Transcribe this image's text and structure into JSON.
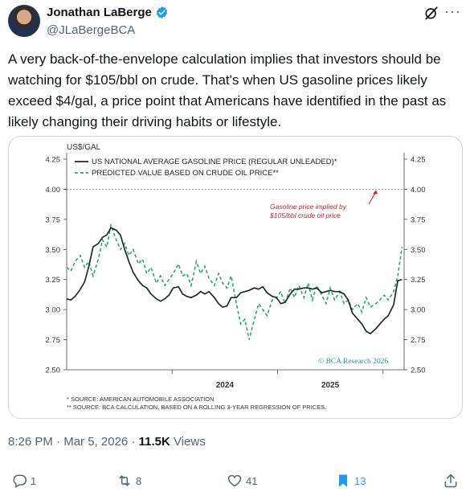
{
  "author": {
    "name": "Jonathan LaBerge",
    "handle": "@JLaBergeBCA",
    "verified": true
  },
  "icons": [
    "verified-icon",
    "grok-icon",
    "more-icon",
    "reply-icon",
    "retweet-icon",
    "like-icon",
    "bookmark-icon",
    "share-icon"
  ],
  "tweet": {
    "text": "A very back-of-the-envelope calculation implies that investors should be watching for $105/bbl on crude. That's when US gasoline prices likely exceed $4/gal, a price point that Americans have identified in the past as likely changing their driving habits or lifestyle."
  },
  "meta": {
    "time": "8:26 PM",
    "sep1": " · ",
    "date": "Mar 5, 2026",
    "sep2": " · ",
    "views_count": "11.5K",
    "views_label": " Views"
  },
  "actions": {
    "replies": "1",
    "reposts": "8",
    "likes": "41",
    "bookmarks": "13"
  },
  "colors": {
    "accent": "#1d9bf0",
    "chart_green": "#2aa27a",
    "chart_dark": "#1f2a2a",
    "chart_red": "#d32027",
    "chart_teal": "#2a9d8f"
  },
  "chart_data": {
    "type": "line",
    "ylabel": "US$/GAL",
    "ylim": [
      2.5,
      4.25
    ],
    "yticks": [
      "4.25",
      "4.00",
      "3.75",
      "3.50",
      "3.25",
      "3.00",
      "2.75",
      "2.50"
    ],
    "xticks": [
      "2024",
      "2025"
    ],
    "reference_line": 4.0,
    "legend_placement": "top-left",
    "annotation": "Gasoline price implied by $105/bbl crude oil price",
    "copyright": "© BCA Research 2026",
    "footnotes": [
      "* SOURCE: AMERICAN AUTOMOBILE ASSOCIATION",
      "** SOURCE: BCA CALCULATION, BASED ON A ROLLING 3-YEAR REGRESSION OF PRICES."
    ],
    "series": [
      {
        "name": "US NATIONAL AVERAGE GASOLINE PRICE (REGULAR UNLEADED)*",
        "style": "solid",
        "x": [
          2023.0,
          2023.04,
          2023.08,
          2023.13,
          2023.17,
          2023.21,
          2023.25,
          2023.3,
          2023.34,
          2023.38,
          2023.42,
          2023.47,
          2023.51,
          2023.55,
          2023.59,
          2023.63,
          2023.68,
          2023.72,
          2023.76,
          2023.8,
          2023.85,
          2023.89,
          2023.93,
          2023.97,
          2024.01,
          2024.06,
          2024.1,
          2024.14,
          2024.18,
          2024.23,
          2024.27,
          2024.31,
          2024.35,
          2024.4,
          2024.44,
          2024.48,
          2024.52,
          2024.56,
          2024.61,
          2024.65,
          2024.69,
          2024.73,
          2024.78,
          2024.82,
          2024.86,
          2024.9,
          2024.95,
          2024.99,
          2025.03,
          2025.07,
          2025.12,
          2025.16,
          2025.2,
          2025.25,
          2025.29,
          2025.33,
          2025.37,
          2025.42,
          2025.46,
          2025.5,
          2025.54,
          2025.59,
          2025.63,
          2025.67,
          2025.71,
          2025.76,
          2025.8,
          2025.84,
          2025.88,
          2025.93,
          2025.97,
          2026.01,
          2026.05,
          2026.1,
          2026.14,
          2026.18
        ],
        "values": [
          3.09,
          3.08,
          3.11,
          3.17,
          3.23,
          3.36,
          3.52,
          3.55,
          3.6,
          3.62,
          3.68,
          3.66,
          3.62,
          3.5,
          3.4,
          3.31,
          3.24,
          3.2,
          3.18,
          3.13,
          3.09,
          3.07,
          3.09,
          3.12,
          3.18,
          3.19,
          3.13,
          3.11,
          3.1,
          3.12,
          3.15,
          3.13,
          3.15,
          3.1,
          3.05,
          3.02,
          3.03,
          3.1,
          3.1,
          3.14,
          3.15,
          3.16,
          3.18,
          3.17,
          3.19,
          3.14,
          3.11,
          3.1,
          3.05,
          3.06,
          3.13,
          3.17,
          3.17,
          3.18,
          3.18,
          3.17,
          3.18,
          3.14,
          3.15,
          3.16,
          3.15,
          3.15,
          3.13,
          3.08,
          2.97,
          2.92,
          2.88,
          2.82,
          2.8,
          2.84,
          2.88,
          2.92,
          2.95,
          3.04,
          3.24,
          3.25
        ]
      },
      {
        "name": "PREDICTED VALUE BASED ON CRUDE OIL PRICE**",
        "style": "dashed",
        "x": [
          2023.0,
          2023.04,
          2023.08,
          2023.13,
          2023.17,
          2023.21,
          2023.25,
          2023.3,
          2023.34,
          2023.38,
          2023.42,
          2023.47,
          2023.51,
          2023.55,
          2023.59,
          2023.63,
          2023.68,
          2023.72,
          2023.76,
          2023.8,
          2023.85,
          2023.89,
          2023.93,
          2023.97,
          2024.01,
          2024.06,
          2024.1,
          2024.14,
          2024.18,
          2024.23,
          2024.27,
          2024.31,
          2024.35,
          2024.4,
          2024.44,
          2024.48,
          2024.52,
          2024.56,
          2024.61,
          2024.65,
          2024.69,
          2024.73,
          2024.78,
          2024.82,
          2024.86,
          2024.9,
          2024.95,
          2024.99,
          2025.03,
          2025.07,
          2025.12,
          2025.16,
          2025.2,
          2025.25,
          2025.29,
          2025.33,
          2025.37,
          2025.42,
          2025.46,
          2025.5,
          2025.54,
          2025.59,
          2025.63,
          2025.67,
          2025.71,
          2025.76,
          2025.8,
          2025.84,
          2025.88,
          2025.93,
          2025.97,
          2026.01,
          2026.05,
          2026.1,
          2026.14,
          2026.18
        ],
        "values": [
          3.35,
          3.32,
          3.4,
          3.45,
          3.35,
          3.4,
          3.28,
          3.42,
          3.58,
          3.52,
          3.7,
          3.58,
          3.5,
          3.55,
          3.45,
          3.5,
          3.38,
          3.42,
          3.3,
          3.35,
          3.22,
          3.28,
          3.2,
          3.25,
          3.3,
          3.38,
          3.28,
          3.3,
          3.2,
          3.4,
          3.3,
          3.36,
          3.26,
          3.2,
          3.3,
          3.22,
          3.18,
          3.28,
          3.05,
          2.88,
          2.92,
          2.75,
          2.92,
          3.05,
          3.0,
          2.95,
          3.08,
          3.1,
          3.15,
          3.05,
          3.18,
          3.1,
          3.2,
          3.1,
          3.22,
          3.08,
          3.2,
          3.12,
          3.05,
          3.18,
          3.08,
          3.15,
          3.05,
          3.08,
          3.0,
          3.05,
          2.98,
          3.1,
          3.02,
          3.05,
          3.08,
          3.12,
          3.08,
          3.15,
          3.28,
          3.52
        ]
      }
    ]
  }
}
